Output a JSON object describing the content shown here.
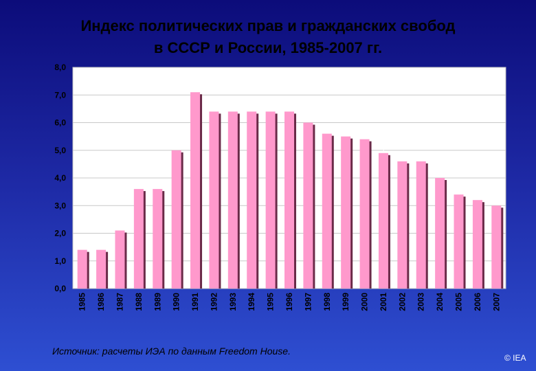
{
  "title_line1": "Индекс политических прав и гражданских свобод",
  "title_line2": "в СССР и России, 1985-2007 гг.",
  "source": "Источник:  расчеты ИЭА по данным Freedom House.",
  "copyright": "© IEA",
  "colors": {
    "bar_fill": "#ff99cc",
    "bar_shadow": "#6a2a48",
    "plot_background": "#ffffff",
    "label_color": "#ffffff",
    "axis_text_color": "#000000"
  },
  "chart_data": {
    "type": "bar",
    "title": "Индекс политических прав и гражданских свобод в СССР и России, 1985-2007 гг.",
    "categories": [
      "1985",
      "1986",
      "1987",
      "1988",
      "1989",
      "1990",
      "1991",
      "1992",
      "1993",
      "1994",
      "1995",
      "1996",
      "1997",
      "1998",
      "1999",
      "2000",
      "2001",
      "2002",
      "2003",
      "2004",
      "2005",
      "2006",
      "2007"
    ],
    "values": [
      1.4,
      1.4,
      2.1,
      3.6,
      3.6,
      5.0,
      7.1,
      6.4,
      6.4,
      6.4,
      6.4,
      6.4,
      6.0,
      5.6,
      5.5,
      5.4,
      4.9,
      4.6,
      4.6,
      4.0,
      3.4,
      3.2,
      3.0
    ],
    "value_labels": [
      "1,4",
      "1,4",
      "2,1",
      "3,6",
      "3,6",
      "5,0",
      "7,1",
      "6,4",
      "6,4",
      "6,4",
      "6,4",
      "6,4",
      "6,0",
      "5,6",
      "5,5",
      "5,4",
      "4,9",
      "4,6",
      "4,6",
      "4,0",
      "3,4",
      "3,2",
      "3,0"
    ],
    "yticks": [
      0,
      1,
      2,
      3,
      4,
      5,
      6,
      7,
      8
    ],
    "ytick_labels": [
      "0,0",
      "1,0",
      "2,0",
      "3,0",
      "4,0",
      "5,0",
      "6,0",
      "7,0",
      "8,0"
    ],
    "ylim": [
      0,
      8
    ],
    "grid": true,
    "legend": "none",
    "xlabel": "",
    "ylabel": ""
  }
}
